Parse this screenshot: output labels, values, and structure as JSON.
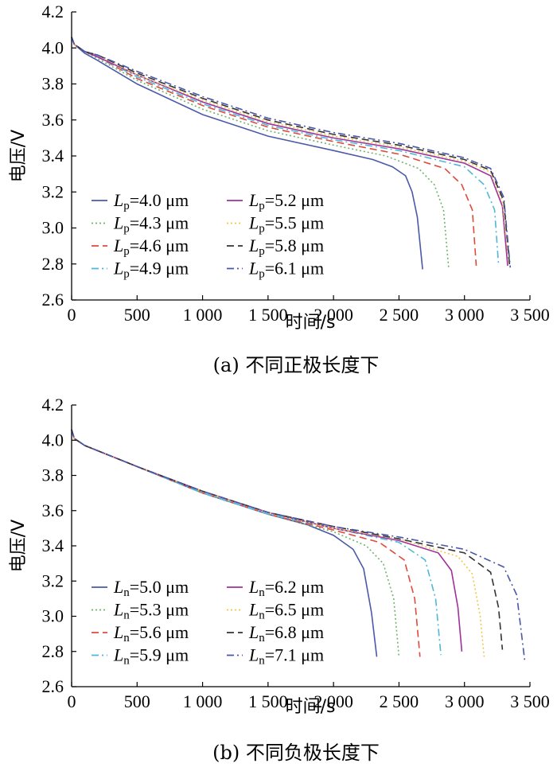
{
  "chart_data": [
    {
      "type": "line",
      "caption": "(a)  不同正极长度下",
      "xlabel": "时间/s",
      "ylabel": "电压/V",
      "xlim": [
        0,
        3500
      ],
      "ylim": [
        2.6,
        4.2
      ],
      "xticks": [
        0,
        500,
        1000,
        1500,
        2000,
        2500,
        3000,
        3500
      ],
      "xtick_labels": [
        "0",
        "500",
        "1 000",
        "1 500",
        "2 000",
        "2 500",
        "3 000",
        "3 500"
      ],
      "yticks": [
        2.6,
        2.8,
        3.0,
        3.2,
        3.4,
        3.6,
        3.8,
        4.0,
        4.2
      ],
      "ytick_labels": [
        "2.6",
        "2.8",
        "3.0",
        "3.2",
        "3.4",
        "3.6",
        "3.8",
        "4.0",
        "4.2"
      ],
      "legend_position": "bottom-left",
      "series": [
        {
          "label_sym": "L",
          "label_sub": "p",
          "label_val": "=4.0 μm",
          "color": "#4a5aa8",
          "dash": "none",
          "points": [
            [
              0,
              4.06
            ],
            [
              20,
              4.02
            ],
            [
              100,
              3.97
            ],
            [
              200,
              3.93
            ],
            [
              500,
              3.8
            ],
            [
              1000,
              3.63
            ],
            [
              1500,
              3.51
            ],
            [
              2000,
              3.43
            ],
            [
              2300,
              3.38
            ],
            [
              2450,
              3.34
            ],
            [
              2550,
              3.29
            ],
            [
              2600,
              3.2
            ],
            [
              2640,
              3.06
            ],
            [
              2680,
              2.77
            ]
          ]
        },
        {
          "label_sym": "L",
          "label_sub": "p",
          "label_val": "=4.3 μm",
          "color": "#6fb36a",
          "dash": "2 3",
          "points": [
            [
              0,
              4.06
            ],
            [
              20,
              4.02
            ],
            [
              100,
              3.98
            ],
            [
              200,
              3.94
            ],
            [
              500,
              3.82
            ],
            [
              1000,
              3.66
            ],
            [
              1500,
              3.54
            ],
            [
              2000,
              3.46
            ],
            [
              2400,
              3.4
            ],
            [
              2650,
              3.33
            ],
            [
              2770,
              3.24
            ],
            [
              2840,
              3.1
            ],
            [
              2880,
              2.77
            ]
          ]
        },
        {
          "label_sym": "L",
          "label_sub": "p",
          "label_val": "=4.6 μm",
          "color": "#e04a3c",
          "dash": "9 5",
          "points": [
            [
              0,
              4.06
            ],
            [
              20,
              4.02
            ],
            [
              100,
              3.98
            ],
            [
              200,
              3.95
            ],
            [
              500,
              3.83
            ],
            [
              1000,
              3.68
            ],
            [
              1500,
              3.56
            ],
            [
              2000,
              3.48
            ],
            [
              2500,
              3.41
            ],
            [
              2850,
              3.33
            ],
            [
              2980,
              3.24
            ],
            [
              3060,
              3.1
            ],
            [
              3090,
              2.79
            ]
          ]
        },
        {
          "label_sym": "L",
          "label_sub": "p",
          "label_val": "=4.9 μm",
          "color": "#4fb8d8",
          "dash": "9 4 2 4",
          "points": [
            [
              0,
              4.06
            ],
            [
              20,
              4.02
            ],
            [
              100,
              3.98
            ],
            [
              200,
              3.95
            ],
            [
              500,
              3.84
            ],
            [
              1000,
              3.69
            ],
            [
              1500,
              3.57
            ],
            [
              2000,
              3.49
            ],
            [
              2500,
              3.43
            ],
            [
              3000,
              3.34
            ],
            [
              3150,
              3.24
            ],
            [
              3230,
              3.1
            ],
            [
              3260,
              2.8
            ]
          ]
        },
        {
          "label_sym": "L",
          "label_sub": "p",
          "label_val": "=5.2 μm",
          "color": "#a0309a",
          "dash": "none",
          "points": [
            [
              0,
              4.06
            ],
            [
              20,
              4.02
            ],
            [
              100,
              3.98
            ],
            [
              200,
              3.95
            ],
            [
              500,
              3.85
            ],
            [
              1000,
              3.7
            ],
            [
              1500,
              3.58
            ],
            [
              2000,
              3.5
            ],
            [
              2500,
              3.44
            ],
            [
              3000,
              3.36
            ],
            [
              3200,
              3.29
            ],
            [
              3290,
              3.12
            ],
            [
              3330,
              2.79
            ]
          ]
        },
        {
          "label_sym": "L",
          "label_sub": "p",
          "label_val": "=5.5 μm",
          "color": "#f2c64a",
          "dash": "2 3",
          "points": [
            [
              0,
              4.06
            ],
            [
              20,
              4.02
            ],
            [
              100,
              3.98
            ],
            [
              200,
              3.96
            ],
            [
              500,
              3.85
            ],
            [
              1000,
              3.71
            ],
            [
              1500,
              3.59
            ],
            [
              2000,
              3.51
            ],
            [
              2500,
              3.45
            ],
            [
              3000,
              3.37
            ],
            [
              3200,
              3.31
            ],
            [
              3290,
              3.15
            ],
            [
              3340,
              2.8
            ]
          ]
        },
        {
          "label_sym": "L",
          "label_sub": "p",
          "label_val": "=5.8 μm",
          "color": "#333333",
          "dash": "9 5",
          "points": [
            [
              0,
              4.06
            ],
            [
              20,
              4.02
            ],
            [
              100,
              3.98
            ],
            [
              200,
              3.96
            ],
            [
              500,
              3.86
            ],
            [
              1000,
              3.72
            ],
            [
              1500,
              3.6
            ],
            [
              2000,
              3.52
            ],
            [
              2500,
              3.46
            ],
            [
              3000,
              3.38
            ],
            [
              3200,
              3.32
            ],
            [
              3300,
              3.15
            ],
            [
              3345,
              2.79
            ]
          ]
        },
        {
          "label_sym": "L",
          "label_sub": "p",
          "label_val": "=6.1 μm",
          "color": "#4a56a8",
          "dash": "9 4 2 4",
          "points": [
            [
              0,
              4.06
            ],
            [
              20,
              4.02
            ],
            [
              100,
              3.98
            ],
            [
              200,
              3.96
            ],
            [
              500,
              3.87
            ],
            [
              1000,
              3.73
            ],
            [
              1500,
              3.61
            ],
            [
              2000,
              3.53
            ],
            [
              2500,
              3.47
            ],
            [
              3000,
              3.39
            ],
            [
              3200,
              3.33
            ],
            [
              3300,
              3.17
            ],
            [
              3350,
              2.78
            ]
          ]
        }
      ]
    },
    {
      "type": "line",
      "caption": "(b)  不同负极长度下",
      "xlabel": "时间/s",
      "ylabel": "电压/V",
      "xlim": [
        0,
        3500
      ],
      "ylim": [
        2.6,
        4.2
      ],
      "xticks": [
        0,
        500,
        1000,
        1500,
        2000,
        2500,
        3000,
        3500
      ],
      "xtick_labels": [
        "0",
        "500",
        "1 000",
        "1 500",
        "2 000",
        "2 500",
        "3 000",
        "3 500"
      ],
      "yticks": [
        2.6,
        2.8,
        3.0,
        3.2,
        3.4,
        3.6,
        3.8,
        4.0,
        4.2
      ],
      "ytick_labels": [
        "2.6",
        "2.8",
        "3.0",
        "3.2",
        "3.4",
        "3.6",
        "3.8",
        "4.0",
        "4.2"
      ],
      "legend_position": "bottom-left",
      "series": [
        {
          "label_sym": "L",
          "label_sub": "n",
          "label_val": "=5.0 μm",
          "color": "#4a5aa8",
          "dash": "none",
          "points": [
            [
              0,
              4.06
            ],
            [
              20,
              4.01
            ],
            [
              100,
              3.97
            ],
            [
              200,
              3.94
            ],
            [
              500,
              3.85
            ],
            [
              1000,
              3.7
            ],
            [
              1500,
              3.58
            ],
            [
              1800,
              3.52
            ],
            [
              2000,
              3.46
            ],
            [
              2150,
              3.38
            ],
            [
              2230,
              3.27
            ],
            [
              2290,
              3.02
            ],
            [
              2330,
              2.77
            ]
          ]
        },
        {
          "label_sym": "L",
          "label_sub": "n",
          "label_val": "=5.3 μm",
          "color": "#6fb36a",
          "dash": "2 3",
          "points": [
            [
              0,
              4.06
            ],
            [
              20,
              4.01
            ],
            [
              100,
              3.97
            ],
            [
              200,
              3.94
            ],
            [
              500,
              3.85
            ],
            [
              1000,
              3.7
            ],
            [
              1500,
              3.58
            ],
            [
              2000,
              3.48
            ],
            [
              2250,
              3.4
            ],
            [
              2380,
              3.3
            ],
            [
              2460,
              3.1
            ],
            [
              2500,
              2.77
            ]
          ]
        },
        {
          "label_sym": "L",
          "label_sub": "n",
          "label_val": "=5.6 μm",
          "color": "#e04a3c",
          "dash": "9 5",
          "points": [
            [
              0,
              4.06
            ],
            [
              20,
              4.01
            ],
            [
              100,
              3.97
            ],
            [
              200,
              3.94
            ],
            [
              500,
              3.85
            ],
            [
              1000,
              3.7
            ],
            [
              1500,
              3.58
            ],
            [
              2000,
              3.49
            ],
            [
              2350,
              3.42
            ],
            [
              2540,
              3.32
            ],
            [
              2620,
              3.1
            ],
            [
              2660,
              2.77
            ]
          ]
        },
        {
          "label_sym": "L",
          "label_sub": "n",
          "label_val": "=5.9 μm",
          "color": "#4fb8d8",
          "dash": "9 4 2 4",
          "points": [
            [
              0,
              4.06
            ],
            [
              20,
              4.01
            ],
            [
              100,
              3.97
            ],
            [
              200,
              3.94
            ],
            [
              500,
              3.85
            ],
            [
              1000,
              3.7
            ],
            [
              1500,
              3.58
            ],
            [
              2000,
              3.5
            ],
            [
              2500,
              3.42
            ],
            [
              2700,
              3.32
            ],
            [
              2780,
              3.1
            ],
            [
              2820,
              2.78
            ]
          ]
        },
        {
          "label_sym": "L",
          "label_sub": "n",
          "label_val": "=6.2 μm",
          "color": "#a0309a",
          "dash": "none",
          "points": [
            [
              0,
              4.06
            ],
            [
              20,
              4.01
            ],
            [
              100,
              3.97
            ],
            [
              200,
              3.94
            ],
            [
              500,
              3.85
            ],
            [
              1000,
              3.71
            ],
            [
              1500,
              3.59
            ],
            [
              2000,
              3.5
            ],
            [
              2500,
              3.43
            ],
            [
              2800,
              3.36
            ],
            [
              2900,
              3.26
            ],
            [
              2950,
              3.05
            ],
            [
              2980,
              2.8
            ]
          ]
        },
        {
          "label_sym": "L",
          "label_sub": "n",
          "label_val": "=6.5 μm",
          "color": "#f2c64a",
          "dash": "2 3",
          "points": [
            [
              0,
              4.06
            ],
            [
              20,
              4.01
            ],
            [
              100,
              3.97
            ],
            [
              200,
              3.94
            ],
            [
              500,
              3.85
            ],
            [
              1000,
              3.71
            ],
            [
              1500,
              3.59
            ],
            [
              2000,
              3.5
            ],
            [
              2500,
              3.44
            ],
            [
              2950,
              3.34
            ],
            [
              3060,
              3.24
            ],
            [
              3120,
              3.0
            ],
            [
              3150,
              2.77
            ]
          ]
        },
        {
          "label_sym": "L",
          "label_sub": "n",
          "label_val": "=6.8 μm",
          "color": "#333333",
          "dash": "9 5",
          "points": [
            [
              0,
              4.06
            ],
            [
              20,
              4.01
            ],
            [
              100,
              3.97
            ],
            [
              200,
              3.94
            ],
            [
              500,
              3.85
            ],
            [
              1000,
              3.71
            ],
            [
              1500,
              3.59
            ],
            [
              2000,
              3.51
            ],
            [
              2500,
              3.44
            ],
            [
              3000,
              3.36
            ],
            [
              3200,
              3.25
            ],
            [
              3260,
              3.05
            ],
            [
              3290,
              2.81
            ]
          ]
        },
        {
          "label_sym": "L",
          "label_sub": "n",
          "label_val": "=7.1 μm",
          "color": "#4a56a8",
          "dash": "9 4 2 4",
          "points": [
            [
              0,
              4.06
            ],
            [
              20,
              4.01
            ],
            [
              100,
              3.97
            ],
            [
              200,
              3.94
            ],
            [
              500,
              3.85
            ],
            [
              1000,
              3.71
            ],
            [
              1500,
              3.59
            ],
            [
              2000,
              3.51
            ],
            [
              2500,
              3.45
            ],
            [
              3000,
              3.38
            ],
            [
              3300,
              3.28
            ],
            [
              3400,
              3.12
            ],
            [
              3460,
              2.75
            ]
          ]
        }
      ]
    }
  ]
}
